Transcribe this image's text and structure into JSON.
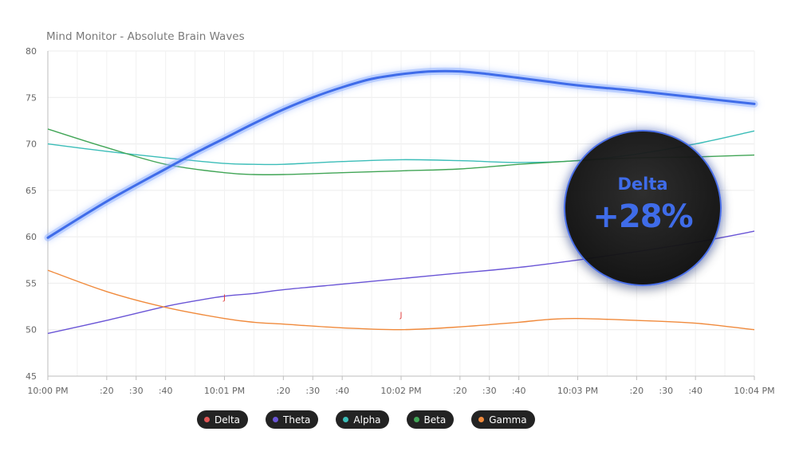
{
  "chart_data": {
    "type": "line",
    "title": "Mind Monitor - Absolute Brain Waves",
    "xlabel": "",
    "ylabel": "",
    "ylim": [
      45,
      80
    ],
    "yticks": [
      45,
      50,
      55,
      60,
      65,
      70,
      75,
      80
    ],
    "xlim": [
      0,
      240
    ],
    "xtick_values": [
      0,
      20,
      30,
      40,
      60,
      80,
      90,
      100,
      120,
      140,
      150,
      160,
      180,
      200,
      210,
      220,
      240
    ],
    "xtick_labels": [
      "10:00 PM",
      ":20",
      ":30",
      ":40",
      "10:01 PM",
      ":20",
      ":30",
      ":40",
      "10:02 PM",
      ":20",
      ":30",
      ":40",
      "10:03 PM",
      ":20",
      ":30",
      ":40",
      "10:04 PM"
    ],
    "grid": true,
    "legend_position": "bottom",
    "series": [
      {
        "name": "Delta",
        "color": "#3f6ce9",
        "marker_color": "#e05555",
        "x": [
          0,
          20,
          40,
          50,
          60,
          70,
          80,
          90,
          100,
          110,
          120,
          130,
          140,
          150,
          160,
          170,
          180,
          200,
          220,
          240
        ],
        "y": [
          59.9,
          63.8,
          67.3,
          69.0,
          70.6,
          72.2,
          73.7,
          75.0,
          76.1,
          77.0,
          77.5,
          77.8,
          77.8,
          77.5,
          77.1,
          76.7,
          76.3,
          75.7,
          75.0,
          74.3
        ]
      },
      {
        "name": "Theta",
        "color": "#6a55d6",
        "marker_color": "#6a55d6",
        "x": [
          0,
          20,
          40,
          50,
          60,
          70,
          80,
          100,
          120,
          140,
          160,
          180,
          200,
          220,
          240
        ],
        "y": [
          49.6,
          51.0,
          52.5,
          53.1,
          53.6,
          53.9,
          54.3,
          54.9,
          55.5,
          56.1,
          56.7,
          57.5,
          58.4,
          59.4,
          60.6
        ]
      },
      {
        "name": "Alpha",
        "color": "#3bbdb8",
        "marker_color": "#3bbdb8",
        "x": [
          0,
          20,
          40,
          60,
          70,
          80,
          100,
          120,
          140,
          160,
          180,
          200,
          220,
          240
        ],
        "y": [
          70.0,
          69.2,
          68.5,
          67.9,
          67.8,
          67.8,
          68.1,
          68.3,
          68.2,
          68.0,
          68.2,
          68.9,
          70.0,
          71.4
        ]
      },
      {
        "name": "Beta",
        "color": "#41a556",
        "marker_color": "#41a556",
        "x": [
          0,
          20,
          40,
          60,
          70,
          80,
          100,
          120,
          140,
          160,
          180,
          200,
          220,
          240
        ],
        "y": [
          71.6,
          69.6,
          67.8,
          66.9,
          66.7,
          66.7,
          66.9,
          67.1,
          67.3,
          67.8,
          68.2,
          68.5,
          68.6,
          68.8
        ]
      },
      {
        "name": "Gamma",
        "color": "#f08a3c",
        "marker_color": "#f08a3c",
        "x": [
          0,
          20,
          40,
          60,
          70,
          80,
          100,
          120,
          140,
          160,
          170,
          180,
          200,
          220,
          240
        ],
        "y": [
          56.4,
          54.1,
          52.4,
          51.2,
          50.8,
          50.6,
          50.2,
          50.0,
          50.3,
          50.8,
          51.1,
          51.2,
          51.0,
          50.7,
          50.0
        ]
      }
    ],
    "annotations": [
      {
        "text": "J",
        "x": 60,
        "y": 53.2
      },
      {
        "text": "J",
        "x": 120,
        "y": 51.3
      }
    ],
    "badge": {
      "label": "Delta",
      "value": "+28%"
    }
  }
}
